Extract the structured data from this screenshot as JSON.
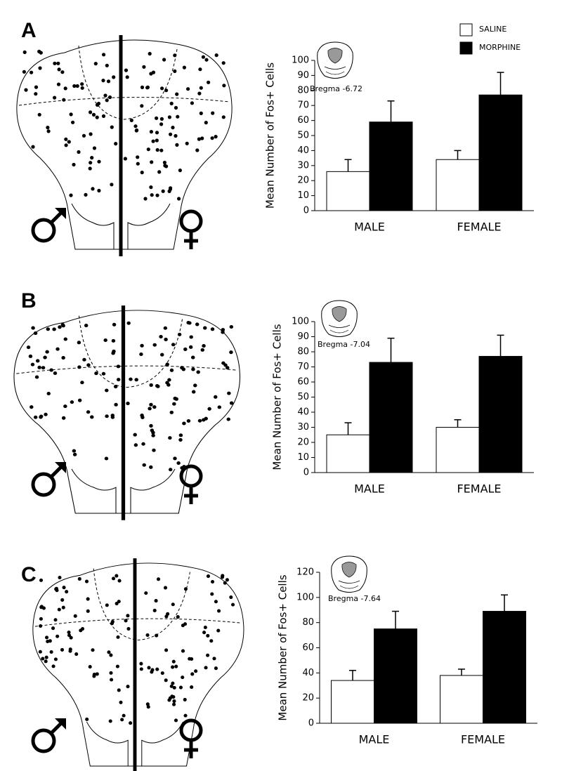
{
  "chart_data": [
    {
      "type": "bar",
      "panel": "A",
      "ylabel": "Mean Number of Fos+ Cells",
      "inset_label": "Bregma -6.72",
      "categories": [
        "MALE",
        "FEMALE"
      ],
      "series": [
        {
          "name": "SALINE",
          "color": "#ffffff",
          "values": [
            26,
            34
          ],
          "errors": [
            8,
            6
          ]
        },
        {
          "name": "MORPHINE",
          "color": "#000000",
          "values": [
            59,
            77
          ],
          "errors": [
            14,
            15
          ]
        }
      ],
      "ylim": [
        0,
        100
      ],
      "yticks": [
        0,
        10,
        20,
        30,
        40,
        50,
        60,
        70,
        80,
        90,
        100
      ]
    },
    {
      "type": "bar",
      "panel": "B",
      "ylabel": "Mean Number of Fos+ Cells",
      "inset_label": "Bregma -7.04",
      "categories": [
        "MALE",
        "FEMALE"
      ],
      "series": [
        {
          "color": "#ffffff",
          "values": [
            25,
            30
          ],
          "errors": [
            8,
            5
          ]
        },
        {
          "color": "#000000",
          "values": [
            73,
            77
          ],
          "errors": [
            16,
            14
          ]
        }
      ],
      "ylim": [
        0,
        100
      ],
      "yticks": [
        0,
        10,
        20,
        30,
        40,
        50,
        60,
        70,
        80,
        90,
        100
      ]
    },
    {
      "type": "bar",
      "panel": "C",
      "ylabel": "Mean Number of Fos+ Cells",
      "inset_label": "Bregma -7.64",
      "categories": [
        "MALE",
        "FEMALE"
      ],
      "series": [
        {
          "color": "#ffffff",
          "values": [
            34,
            38
          ],
          "errors": [
            8,
            5
          ]
        },
        {
          "color": "#000000",
          "values": [
            75,
            89
          ],
          "errors": [
            14,
            13
          ]
        }
      ],
      "ylim": [
        0,
        120
      ],
      "yticks": [
        0,
        20,
        40,
        60,
        80,
        100,
        120
      ]
    }
  ]
}
